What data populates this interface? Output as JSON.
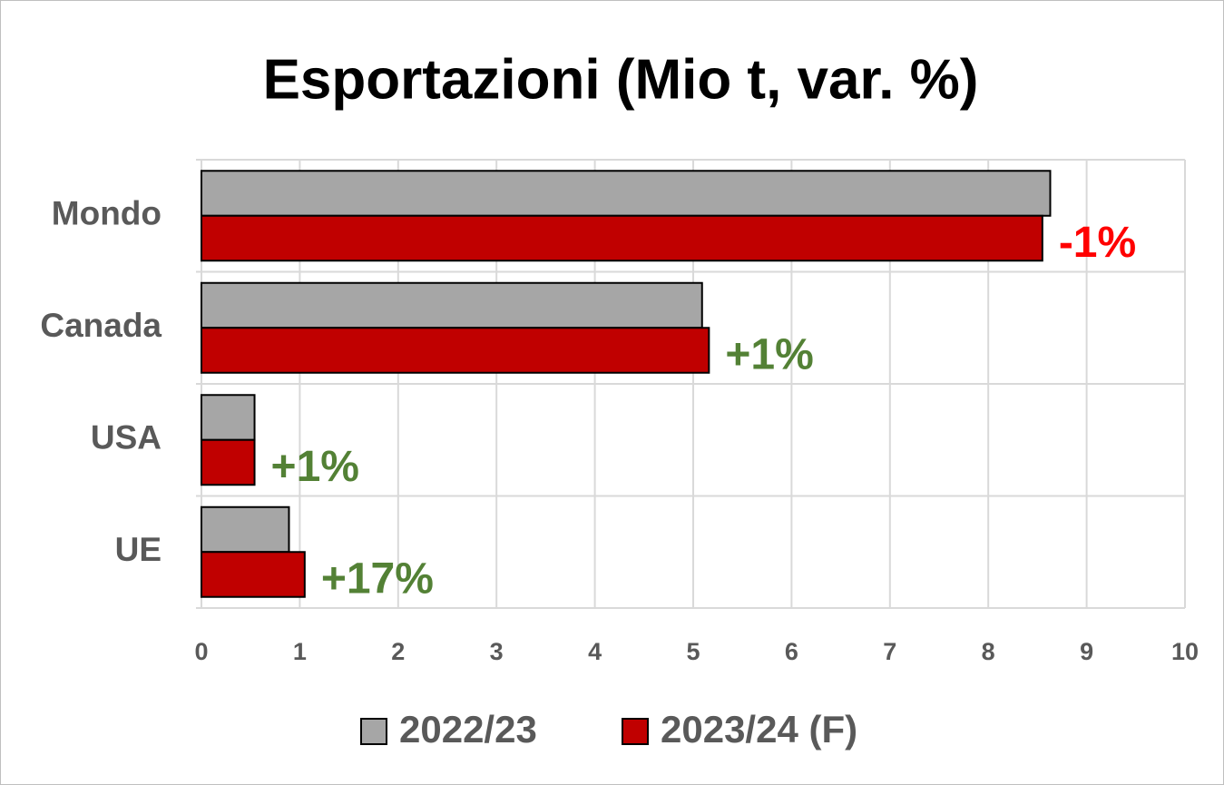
{
  "chart_data": {
    "type": "hbar",
    "title": "Esportazioni (Mio t, var. %)",
    "categories": [
      "Mondo",
      "Canada",
      "USA",
      "UE"
    ],
    "series": [
      {
        "name": "2022/23",
        "color": "#a6a6a6",
        "values": [
          8.63,
          5.09,
          0.54,
          0.89
        ]
      },
      {
        "name": "2023/24 (F)",
        "color": "#c00000",
        "values": [
          8.55,
          5.16,
          0.54,
          1.05
        ]
      }
    ],
    "annotations": [
      {
        "text": "-1%",
        "color": "#ff0000"
      },
      {
        "text": "+1%",
        "color": "#538135"
      },
      {
        "text": "+1%",
        "color": "#538135"
      },
      {
        "text": "+17%",
        "color": "#538135"
      }
    ],
    "xlim": [
      0,
      10
    ],
    "xticks": [
      0,
      1,
      2,
      3,
      4,
      5,
      6,
      7,
      8,
      9,
      10
    ],
    "grid": true,
    "legend": "bottom"
  }
}
